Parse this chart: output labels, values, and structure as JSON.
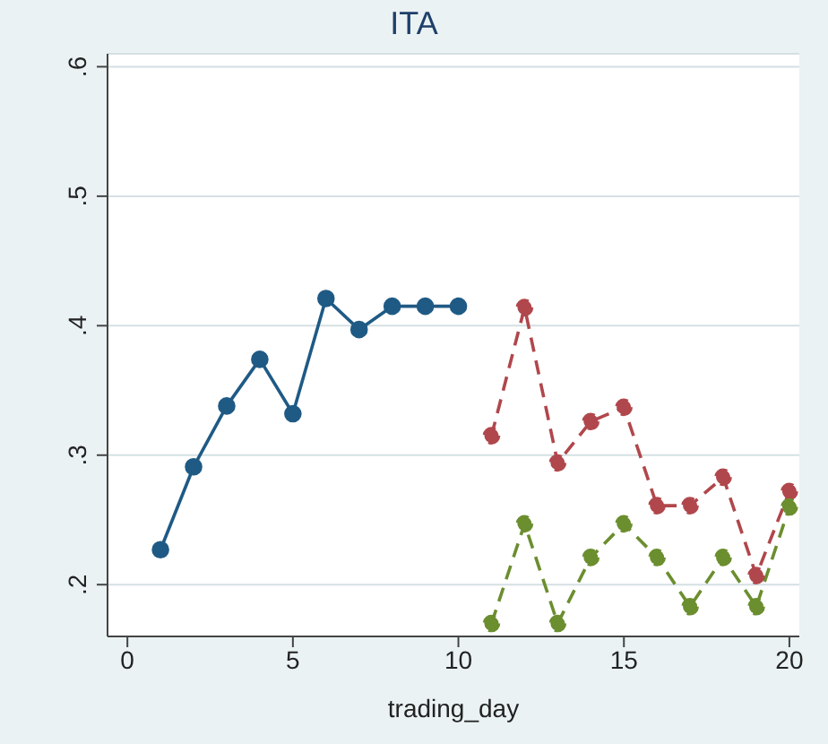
{
  "chart_data": {
    "type": "line",
    "title": "ITA",
    "xlabel": "trading_day",
    "x": [
      1,
      2,
      3,
      4,
      5,
      6,
      7,
      8,
      9,
      10,
      11,
      12,
      13,
      14,
      15,
      16,
      17,
      18,
      19,
      20
    ],
    "series": [
      {
        "color": "#1f5a85",
        "line_style": "solid",
        "values": [
          0.227,
          0.291,
          0.338,
          0.374,
          0.332,
          0.421,
          0.397,
          0.415,
          0.415,
          0.415,
          null,
          null,
          null,
          null,
          null,
          null,
          null,
          null,
          null,
          null
        ]
      },
      {
        "color": "#b0474c",
        "line_style": "dashed",
        "values": [
          null,
          null,
          null,
          null,
          null,
          null,
          null,
          null,
          null,
          null,
          0.315,
          0.414,
          0.294,
          0.326,
          0.337,
          0.261,
          0.261,
          0.283,
          0.207,
          0.272
        ]
      },
      {
        "color": "#6b8e2f",
        "line_style": "dashed",
        "values": [
          null,
          null,
          null,
          null,
          null,
          null,
          null,
          null,
          null,
          null,
          0.17,
          0.247,
          0.17,
          0.221,
          0.247,
          0.221,
          0.183,
          0.221,
          0.183,
          0.26
        ]
      }
    ],
    "xlim": [
      -0.6,
      20.3
    ],
    "xticks": [
      0,
      5,
      10,
      15,
      20
    ],
    "ylim": [
      0.16,
      0.61
    ],
    "yticks": [
      {
        "value": 0.2,
        "label": ".2"
      },
      {
        "value": 0.3,
        "label": ".3"
      },
      {
        "value": 0.4,
        "label": ".4"
      },
      {
        "value": 0.5,
        "label": ".5"
      },
      {
        "value": 0.6,
        "label": ".6"
      }
    ],
    "grid": "y",
    "marker": "circle"
  }
}
